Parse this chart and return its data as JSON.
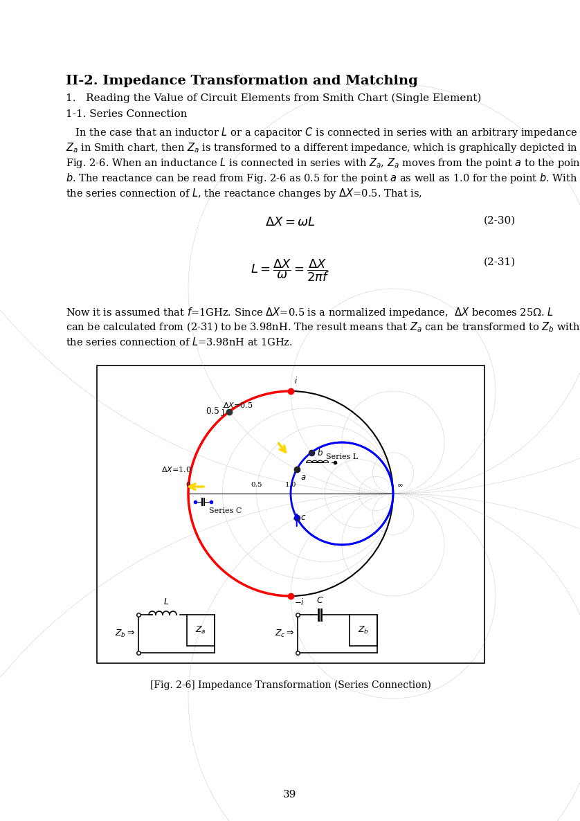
{
  "title": "II-2. Impedance Transformation and Matching",
  "subtitle1": "1.   Reading the Value of Circuit Elements from Smith Chart (Single Element)",
  "subtitle2": "1-1. Series Connection",
  "body_text": [
    "   In the case that an inductor $L$ or a capacitor $C$ is connected in series with an arbitrary impedance",
    "$Z_a$ in Smith chart, then $Z_a$ is transformed to a different impedance, which is graphically depicted in",
    "Fig. 2-6. When an inductance $L$ is connected in series with $Z_a$, $Z_a$ moves from the point $a$ to the point",
    "$b$. The reactance can be read from Fig. 2-6 as 0.5 for the point $a$ as well as 1.0 for the point $b$. With",
    "the series connection of $L$, the reactance changes by $\\Delta X$=0.5. That is,"
  ],
  "eq1_label": "(2-30)",
  "eq2_label": "(2-31)",
  "body_text2": [
    "Now it is assumed that $f$=1GHz. Since $\\Delta X$=0.5 is a normalized impedance,  $\\Delta X$ becomes 25Ω. $L$",
    "can be calculated from (2-31) to be 3.98nH. The result means that $Z_a$ can be transformed to $Z_b$ with",
    "the series connection of $L$=3.98nH at 1GHz."
  ],
  "fig_caption": "[Fig. 2-6] Impedance Transformation (Series Connection)",
  "page_number": "39",
  "background_color": "#ffffff"
}
